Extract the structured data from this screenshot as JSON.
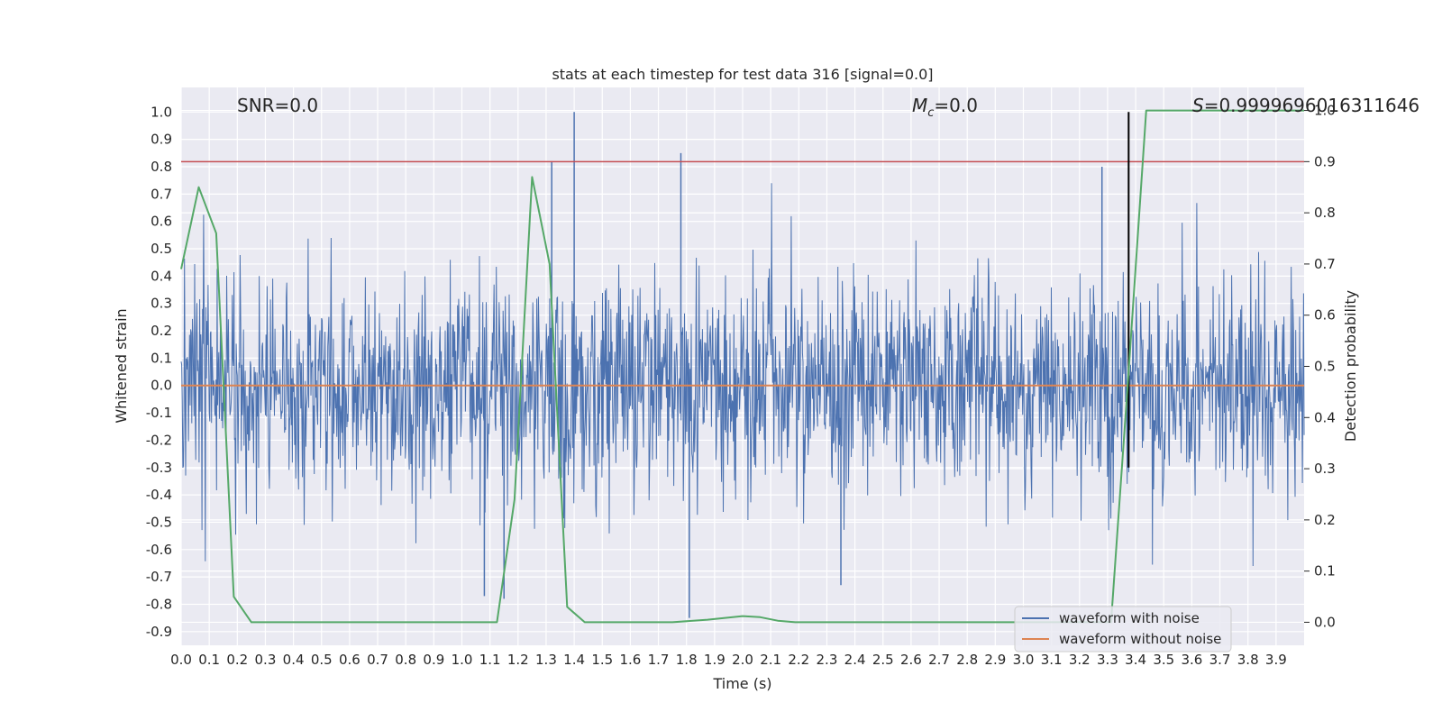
{
  "chart_data": {
    "type": "line",
    "title": "stats at each timestep for test data 316 [signal=0.0]",
    "xlabel": "Time (s)",
    "ylabel": "Whitened strain",
    "y2label": "Detection probability",
    "xlim": [
      0.0,
      4.0
    ],
    "ylim": [
      -0.95,
      1.09
    ],
    "y2lim": [
      -0.045,
      1.045
    ],
    "xticks": [
      "0.0",
      "0.1",
      "0.2",
      "0.3",
      "0.4",
      "0.5",
      "0.6",
      "0.7",
      "0.8",
      "0.9",
      "1.0",
      "1.1",
      "1.2",
      "1.3",
      "1.4",
      "1.5",
      "1.6",
      "1.7",
      "1.8",
      "1.9",
      "2.0",
      "2.1",
      "2.2",
      "2.3",
      "2.4",
      "2.5",
      "2.6",
      "2.7",
      "2.8",
      "2.9",
      "3.0",
      "3.1",
      "3.2",
      "3.3",
      "3.4",
      "3.5",
      "3.6",
      "3.7",
      "3.8",
      "3.9"
    ],
    "yticks": [
      "1.0",
      "0.9",
      "0.8",
      "0.7",
      "0.6",
      "0.5",
      "0.4",
      "0.3",
      "0.2",
      "0.1",
      "0.0",
      "-0.1",
      "-0.2",
      "-0.3",
      "-0.4",
      "-0.5",
      "-0.6",
      "-0.7",
      "-0.8",
      "-0.9"
    ],
    "y2ticks": [
      "1.0",
      "0.9",
      "0.8",
      "0.7",
      "0.6",
      "0.5",
      "0.4",
      "0.3",
      "0.2",
      "0.1",
      "0.0"
    ],
    "grid": true,
    "legend_position": "lower-right",
    "annotations": {
      "snr": "SNR=0.0",
      "mc_symbol": "M",
      "mc_sub": "c",
      "mc_value": "=0.0",
      "s_symbol": "S",
      "s_value": "=0.9999696016311646"
    },
    "series": [
      {
        "name": "waveform with noise",
        "color": "#4c72b0",
        "axis": "left",
        "description_range": [
          -0.85,
          1.0
        ],
        "peaks": [
          {
            "x": 1.4,
            "y": 1.0
          },
          {
            "x": 1.78,
            "y": 0.85
          },
          {
            "x": 1.32,
            "y": 0.82
          },
          {
            "x": 3.28,
            "y": 0.8
          },
          {
            "x": 1.81,
            "y": -0.85
          },
          {
            "x": 1.15,
            "y": -0.78
          },
          {
            "x": 1.08,
            "y": -0.77
          },
          {
            "x": 2.35,
            "y": -0.73
          }
        ]
      },
      {
        "name": "waveform without noise",
        "color": "#dd8452",
        "axis": "left",
        "x": [
          0.0,
          4.0
        ],
        "y": [
          0.0,
          0.0
        ]
      },
      {
        "color": "#55a868",
        "axis": "right",
        "x": [
          0.0,
          0.0625,
          0.125,
          0.1875,
          0.25,
          0.3125,
          0.5,
          1.0,
          1.0625,
          1.125,
          1.1875,
          1.25,
          1.3125,
          1.375,
          1.4375,
          1.5,
          1.75,
          1.875,
          2.0,
          2.0625,
          2.125,
          2.1875,
          2.25,
          2.5,
          3.0,
          3.3125,
          3.375,
          3.4375,
          3.5,
          4.0
        ],
        "y": [
          0.69,
          0.85,
          0.76,
          0.05,
          0.0,
          0.0,
          0.0,
          0.0,
          0.0,
          0.0,
          0.24,
          0.87,
          0.7,
          0.03,
          0.0,
          0.0,
          0.0,
          0.005,
          0.012,
          0.01,
          0.003,
          0.0,
          0.0,
          0.0,
          0.0,
          0.0,
          0.49,
          1.0,
          1.0,
          1.0
        ]
      }
    ],
    "hlines": [
      {
        "axis": "right",
        "y": 0.9,
        "color": "#c44e52"
      }
    ],
    "vlines": [
      {
        "x": 3.375,
        "y_range": [
          -0.3,
          1.0
        ],
        "color": "#000000"
      }
    ]
  }
}
